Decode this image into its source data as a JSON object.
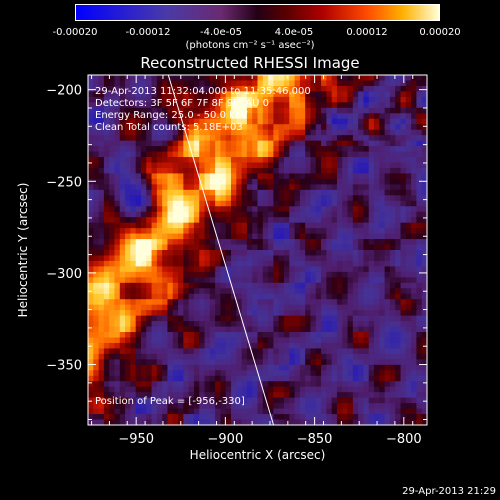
{
  "colorbar": {
    "ticks": [
      "-0.00020",
      "-0.00012",
      "-4.0e-05",
      "4.0e-05",
      "0.00012",
      "0.00020"
    ],
    "label": "(photons cm⁻² s⁻¹ asec⁻²)",
    "colors": [
      "#0000ff",
      "#4a3aa8",
      "#240016",
      "#b00000",
      "#ff4a00",
      "#ffffd8"
    ]
  },
  "overlay": {
    "time_range": "29-Apr-2013 11:32:04.000 to 11:35:46.000",
    "detectors": "Detectors: 3F 5F 6F 7F 8F 9F, AU 0",
    "energy_range": "Energy Range: 25.0 - 50.0 keV",
    "algorithm": "Clean    Total counts: 5.18E+03",
    "peak": "Position of Peak = [-956,-330]"
  },
  "footer": {
    "timestamp": "29-Apr-2013 21:29"
  },
  "chart_data": {
    "type": "heatmap",
    "title": "Reconstructed RHESSI Image",
    "xlabel": "Heliocentric X (arcsec)",
    "ylabel": "Heliocentric Y (arcsec)",
    "xlim": [
      -977,
      -787
    ],
    "ylim": [
      -383,
      -192
    ],
    "xticks": [
      -950,
      -900,
      -850,
      -800
    ],
    "yticks": [
      -200,
      -250,
      -300,
      -350
    ],
    "xtick_labels": [
      "−950",
      "−900",
      "−850",
      "−800"
    ],
    "ytick_labels": [
      "−200",
      "−250",
      "−300",
      "−350"
    ],
    "value_range": [
      -0.0002,
      0.0002
    ],
    "limb_line": [
      [
        -932,
        -192
      ],
      [
        -873,
        -383
      ]
    ],
    "peak": [
      -956,
      -330
    ]
  }
}
